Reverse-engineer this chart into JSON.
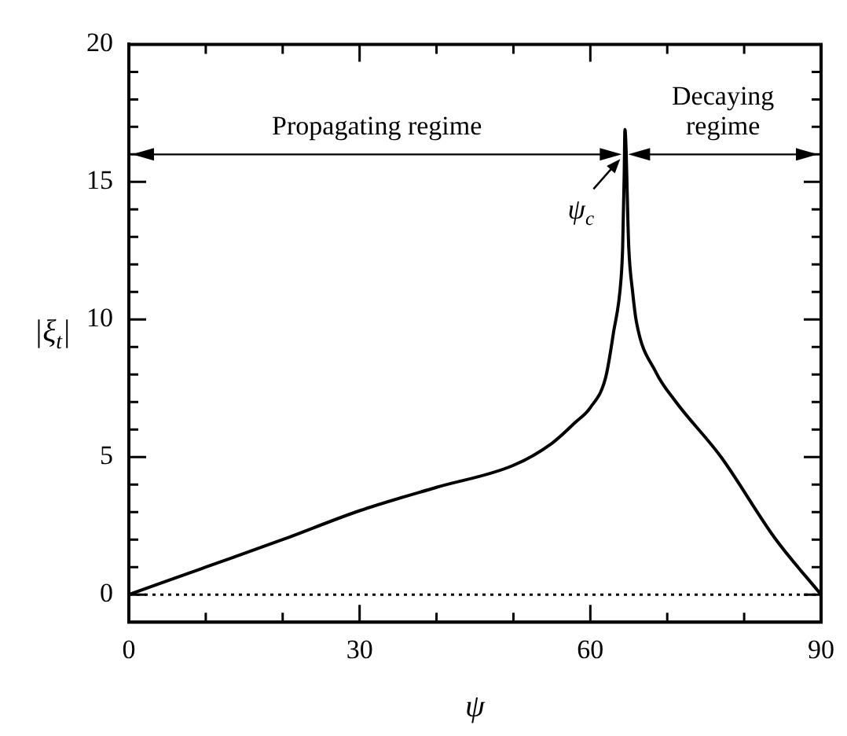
{
  "chart_data": {
    "type": "line",
    "xlabel": "ψ",
    "ylabel": "|ξ$_{t}$|",
    "x": [
      0,
      10,
      20,
      30,
      40,
      50,
      55,
      58,
      60,
      62,
      63,
      64,
      64.2,
      64.4,
      64.5,
      65,
      65.5,
      66,
      68.5,
      71,
      77,
      84,
      90
    ],
    "series": [
      {
        "color": "#000000",
        "values": [
          0,
          1,
          2,
          3.05,
          3.9,
          4.7,
          5.5,
          6.25,
          6.8,
          7.9,
          9.5,
          11.5,
          12.6,
          15.2,
          16.9,
          12.6,
          11,
          9.9,
          8.1,
          7.05,
          5,
          2.05,
          0
        ]
      }
    ],
    "xlim": [
      0,
      90
    ],
    "ylim": [
      -1,
      20
    ],
    "xticks": [
      0,
      {
        "value": 10,
        "label": null
      },
      {
        "value": 20,
        "label": null
      },
      30,
      {
        "value": 40,
        "label": null
      },
      {
        "value": 50,
        "label": null
      },
      60,
      {
        "value": 70,
        "label": null
      },
      {
        "value": 80,
        "label": null
      },
      90
    ],
    "yticks": [
      0,
      {
        "value": 1,
        "label": null
      },
      {
        "value": 2,
        "label": null
      },
      {
        "value": 3,
        "label": null
      },
      {
        "value": 4,
        "label": null
      },
      5,
      {
        "value": 6,
        "label": null
      },
      {
        "value": 7,
        "label": null
      },
      {
        "value": 8,
        "label": null
      },
      {
        "value": 9,
        "label": null
      },
      10,
      {
        "value": 11,
        "label": null
      },
      {
        "value": 12,
        "label": null
      },
      {
        "value": 13,
        "label": null
      },
      {
        "value": 14,
        "label": null
      },
      15,
      {
        "value": 16,
        "label": null
      },
      {
        "value": 17,
        "label": null
      },
      {
        "value": 18,
        "label": null
      },
      {
        "value": 19,
        "label": null
      },
      20
    ],
    "ref_lines": [
      {
        "axis": "y",
        "value": 0,
        "line_style": "dotted"
      }
    ],
    "annotations": [
      {
        "text": "ψ$_{c}$",
        "x": 64.5,
        "y": 16
      },
      "Propagating regime",
      "Decaying regime"
    ],
    "legend": false,
    "marker": "none",
    "line_style": "solid"
  }
}
